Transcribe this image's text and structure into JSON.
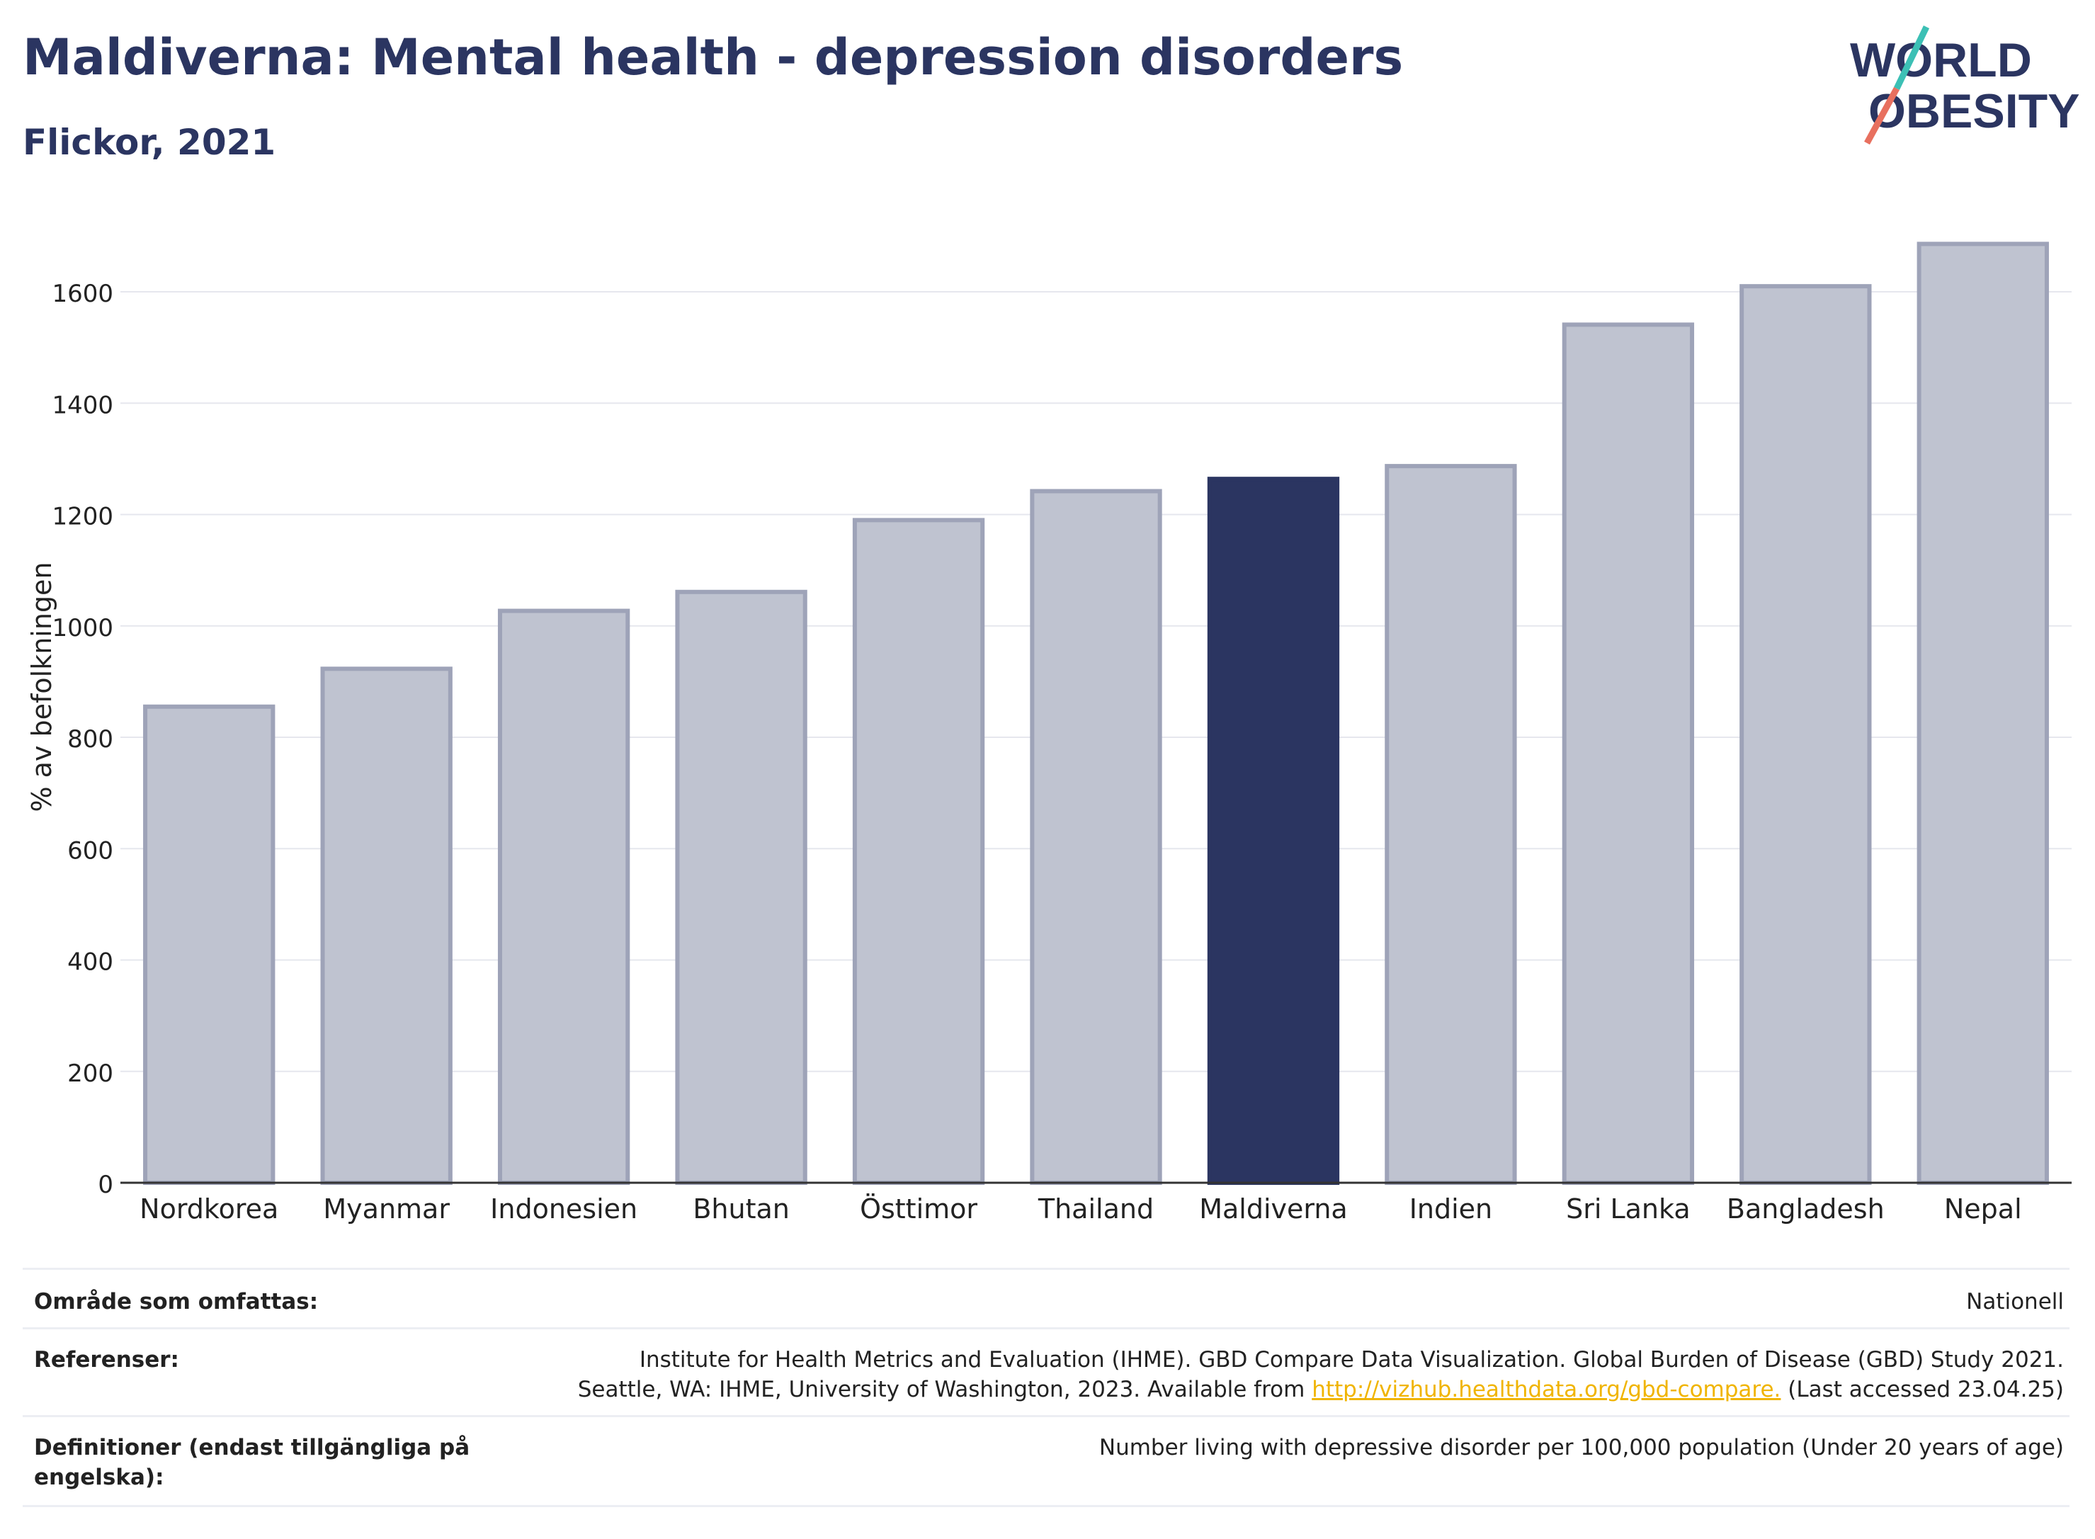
{
  "header": {
    "title": "Maldiverna: Mental health - depression disorders",
    "subtitle": "Flickor, 2021"
  },
  "logo": {
    "line1": "WORLD",
    "line2": "OBESITY"
  },
  "chart_data": {
    "type": "bar",
    "categories": [
      "Nordkorea",
      "Myanmar",
      "Indonesien",
      "Bhutan",
      "Östtimor",
      "Thailand",
      "Maldiverna",
      "Indien",
      "Sri Lanka",
      "Bangladesh",
      "Nepal"
    ],
    "values": [
      855,
      923,
      1027,
      1061,
      1190,
      1242,
      1264,
      1287,
      1541,
      1610,
      1686
    ],
    "highlight": "Maldiverna",
    "ylabel": "% av befolkningen",
    "xlabel": "",
    "ylim": [
      0,
      1750
    ],
    "yticks": [
      0,
      200,
      400,
      600,
      800,
      1000,
      1200,
      1400,
      1600
    ],
    "grid": true,
    "colors": {
      "bar": "#bfc3d0",
      "bar_border": "#9ea3b8",
      "highlight": "#2b3561",
      "grid": "#e6e7ee",
      "axis": "#333333"
    }
  },
  "meta": {
    "coverage_label": "Område som omfattas:",
    "coverage_value": "Nationell",
    "references_label": "Referenser:",
    "references_line1": "Institute for Health Metrics and Evaluation (IHME). GBD Compare Data Visualization. Global Burden of Disease (GBD) Study 2021.",
    "references_line2_pre": "Seattle, WA: IHME, University of Washington, 2023. Available from ",
    "references_link": "http://vizhub.healthdata.org/gbd-compare.",
    "references_line2_post": " (Last accessed 23.04.25)",
    "definitions_label": "Definitioner (endast tillgängliga på engelska):",
    "definitions_value": "Number living with depressive disorder per 100,000 population (Under 20 years of age)"
  }
}
